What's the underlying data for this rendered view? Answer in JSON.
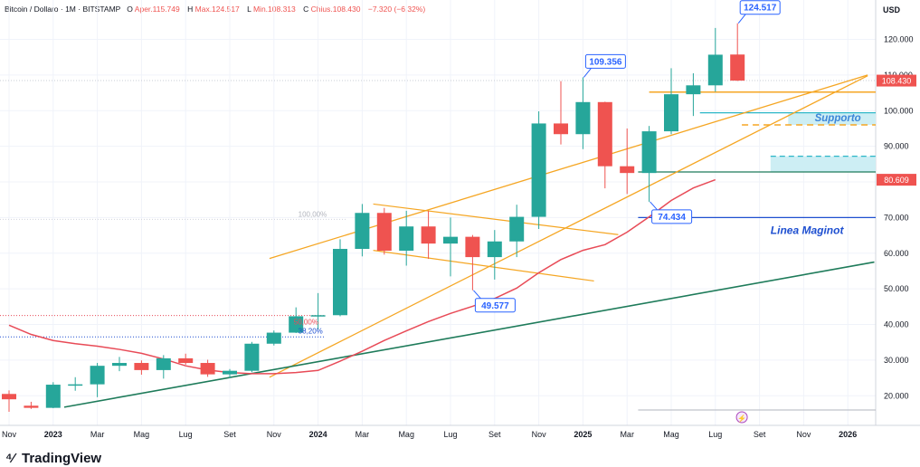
{
  "header": {
    "symbol": "Bitcoin / Dollaro · 1M · BITSTAMP",
    "open_label": "O",
    "open": "Aper.115.749",
    "high_label": "H",
    "high": "Max.124.517",
    "low_label": "L",
    "low": "Min.108.313",
    "close_label": "C",
    "close": "Chius.108.430",
    "change": "−7.320 (−6,32%)"
  },
  "brand": {
    "name": "TradingView"
  },
  "colors": {
    "up": "#26a69a",
    "down": "#ef5350",
    "orange": "#f5a623",
    "ma": "#e84b57",
    "trend": "#1e7b5a",
    "blue": "#1e4fd0",
    "cyan": "#2bb6c7"
  },
  "chart_data": {
    "type": "candlestick",
    "currency_label": "USD",
    "ylim": [
      13000,
      128000
    ],
    "y_ticks": [
      20000,
      30000,
      40000,
      50000,
      60000,
      70000,
      80000,
      90000,
      100000,
      110000,
      120000
    ],
    "y_tick_labels": [
      "20.000",
      "30.000",
      "40.000",
      "50.000",
      "60.000",
      "70.000",
      "80.000",
      "90.000",
      "100.000",
      "110.000",
      "120.000"
    ],
    "x_ticks": [
      {
        "i": 0,
        "label": "Nov",
        "bold": false
      },
      {
        "i": 2,
        "label": "2023",
        "bold": true
      },
      {
        "i": 4,
        "label": "Mar",
        "bold": false
      },
      {
        "i": 6,
        "label": "Mag",
        "bold": false
      },
      {
        "i": 8,
        "label": "Lug",
        "bold": false
      },
      {
        "i": 10,
        "label": "Set",
        "bold": false
      },
      {
        "i": 12,
        "label": "Nov",
        "bold": false
      },
      {
        "i": 14,
        "label": "2024",
        "bold": true
      },
      {
        "i": 16,
        "label": "Mar",
        "bold": false
      },
      {
        "i": 18,
        "label": "Mag",
        "bold": false
      },
      {
        "i": 20,
        "label": "Lug",
        "bold": false
      },
      {
        "i": 22,
        "label": "Set",
        "bold": false
      },
      {
        "i": 24,
        "label": "Nov",
        "bold": false
      },
      {
        "i": 26,
        "label": "2025",
        "bold": true
      },
      {
        "i": 28,
        "label": "Mar",
        "bold": false
      },
      {
        "i": 30,
        "label": "Mag",
        "bold": false
      },
      {
        "i": 32,
        "label": "Lug",
        "bold": false
      },
      {
        "i": 34,
        "label": "Set",
        "bold": false
      },
      {
        "i": 36,
        "label": "Nov",
        "bold": false
      },
      {
        "i": 38,
        "label": "2026",
        "bold": true
      }
    ],
    "candles": [
      {
        "i": 0,
        "o": 20500,
        "h": 21500,
        "l": 15500,
        "c": 19000
      },
      {
        "i": 1,
        "o": 17200,
        "h": 18300,
        "l": 16300,
        "c": 16600
      },
      {
        "i": 2,
        "o": 16600,
        "h": 23800,
        "l": 16500,
        "c": 23100
      },
      {
        "i": 3,
        "o": 23100,
        "h": 25200,
        "l": 21400,
        "c": 23200
      },
      {
        "i": 4,
        "o": 23200,
        "h": 29200,
        "l": 19600,
        "c": 28400
      },
      {
        "i": 5,
        "o": 28400,
        "h": 30900,
        "l": 26900,
        "c": 29200
      },
      {
        "i": 6,
        "o": 29200,
        "h": 29900,
        "l": 25900,
        "c": 27200
      },
      {
        "i": 7,
        "o": 27200,
        "h": 31400,
        "l": 24800,
        "c": 30500
      },
      {
        "i": 8,
        "o": 30500,
        "h": 31800,
        "l": 28700,
        "c": 29200
      },
      {
        "i": 9,
        "o": 29200,
        "h": 30100,
        "l": 25300,
        "c": 26000
      },
      {
        "i": 10,
        "o": 26000,
        "h": 27500,
        "l": 24900,
        "c": 27000
      },
      {
        "i": 11,
        "o": 27000,
        "h": 35100,
        "l": 26600,
        "c": 34600
      },
      {
        "i": 12,
        "o": 34600,
        "h": 38300,
        "l": 34100,
        "c": 37700
      },
      {
        "i": 13,
        "o": 37700,
        "h": 44800,
        "l": 37600,
        "c": 42300
      },
      {
        "i": 14,
        "o": 42300,
        "h": 48800,
        "l": 38600,
        "c": 42600
      },
      {
        "i": 15,
        "o": 42600,
        "h": 63900,
        "l": 42300,
        "c": 61200
      },
      {
        "i": 16,
        "o": 61200,
        "h": 73800,
        "l": 59100,
        "c": 71300
      },
      {
        "i": 17,
        "o": 71300,
        "h": 72700,
        "l": 59600,
        "c": 60700
      },
      {
        "i": 18,
        "o": 60700,
        "h": 71900,
        "l": 56500,
        "c": 67500
      },
      {
        "i": 19,
        "o": 67500,
        "h": 71900,
        "l": 58400,
        "c": 62700
      },
      {
        "i": 20,
        "o": 62700,
        "h": 70000,
        "l": 53500,
        "c": 64600
      },
      {
        "i": 21,
        "o": 64600,
        "h": 65100,
        "l": 49577,
        "c": 58900
      },
      {
        "i": 22,
        "o": 58900,
        "h": 66500,
        "l": 52600,
        "c": 63300
      },
      {
        "i": 23,
        "o": 63300,
        "h": 73600,
        "l": 58900,
        "c": 70200
      },
      {
        "i": 24,
        "o": 70200,
        "h": 99800,
        "l": 66800,
        "c": 96400
      },
      {
        "i": 25,
        "o": 96400,
        "h": 108300,
        "l": 90500,
        "c": 93400
      },
      {
        "i": 26,
        "o": 93400,
        "h": 109356,
        "l": 89200,
        "c": 102400
      },
      {
        "i": 27,
        "o": 102400,
        "h": 102500,
        "l": 78200,
        "c": 84400
      },
      {
        "i": 28,
        "o": 84400,
        "h": 95000,
        "l": 76600,
        "c": 82500
      },
      {
        "i": 29,
        "o": 82500,
        "h": 95700,
        "l": 74434,
        "c": 94200
      },
      {
        "i": 30,
        "o": 94200,
        "h": 111900,
        "l": 93400,
        "c": 104600
      },
      {
        "i": 31,
        "o": 104600,
        "h": 110500,
        "l": 98500,
        "c": 107100
      },
      {
        "i": 32,
        "o": 107100,
        "h": 123200,
        "l": 105300,
        "c": 115700
      },
      {
        "i": 33,
        "o": 115749,
        "h": 124517,
        "l": 108313,
        "c": 108430
      }
    ],
    "moving_average": [
      [
        0,
        39800
      ],
      [
        1,
        37200
      ],
      [
        2,
        35500
      ],
      [
        3,
        34600
      ],
      [
        4,
        33900
      ],
      [
        5,
        33000
      ],
      [
        6,
        31900
      ],
      [
        7,
        30300
      ],
      [
        8,
        28400
      ],
      [
        9,
        27200
      ],
      [
        10,
        26500
      ],
      [
        11,
        26200
      ],
      [
        12,
        26200
      ],
      [
        13,
        26500
      ],
      [
        14,
        27100
      ],
      [
        15,
        29700
      ],
      [
        16,
        32500
      ],
      [
        17,
        35500
      ],
      [
        18,
        38200
      ],
      [
        19,
        40800
      ],
      [
        20,
        43100
      ],
      [
        21,
        45100
      ],
      [
        22,
        47300
      ],
      [
        23,
        50200
      ],
      [
        24,
        54500
      ],
      [
        25,
        58200
      ],
      [
        26,
        60800
      ],
      [
        27,
        62400
      ],
      [
        28,
        65900
      ],
      [
        29,
        70200
      ],
      [
        30,
        74800
      ],
      [
        31,
        78300
      ],
      [
        32,
        80609
      ]
    ],
    "price_badges": [
      {
        "value": 108430,
        "label": "108.430",
        "color": "#ef5350"
      },
      {
        "value": 80609,
        "label": "80.609",
        "color": "#ef5350"
      }
    ],
    "callouts": [
      {
        "label": "124.517",
        "anchor_i": 33,
        "anchor_v": 124517,
        "side": "above"
      },
      {
        "label": "109.356",
        "anchor_i": 26,
        "anchor_v": 109356,
        "side": "above"
      },
      {
        "label": "74.434",
        "anchor_i": 29,
        "anchor_v": 74434,
        "side": "below"
      },
      {
        "label": "49.577",
        "anchor_i": 21,
        "anchor_v": 49577,
        "side": "below"
      }
    ],
    "annotations": {
      "supporto": "Supporto",
      "maginot": "Linea Maginot",
      "fib_100": "100,00%",
      "fib_50": "50,00%",
      "fib_38": "38,20%"
    },
    "levels": {
      "maginot": 70000,
      "fib_100": 69500,
      "fib_50": 42500,
      "fib_38": 36500,
      "support_zone": [
        96000,
        99200
      ],
      "support_zone2": [
        82700,
        87200
      ],
      "cyan_line": 99400,
      "orange_level": 105200,
      "green_level": 82800,
      "bottom_gray": 16000
    },
    "legend": false,
    "grid": true
  }
}
